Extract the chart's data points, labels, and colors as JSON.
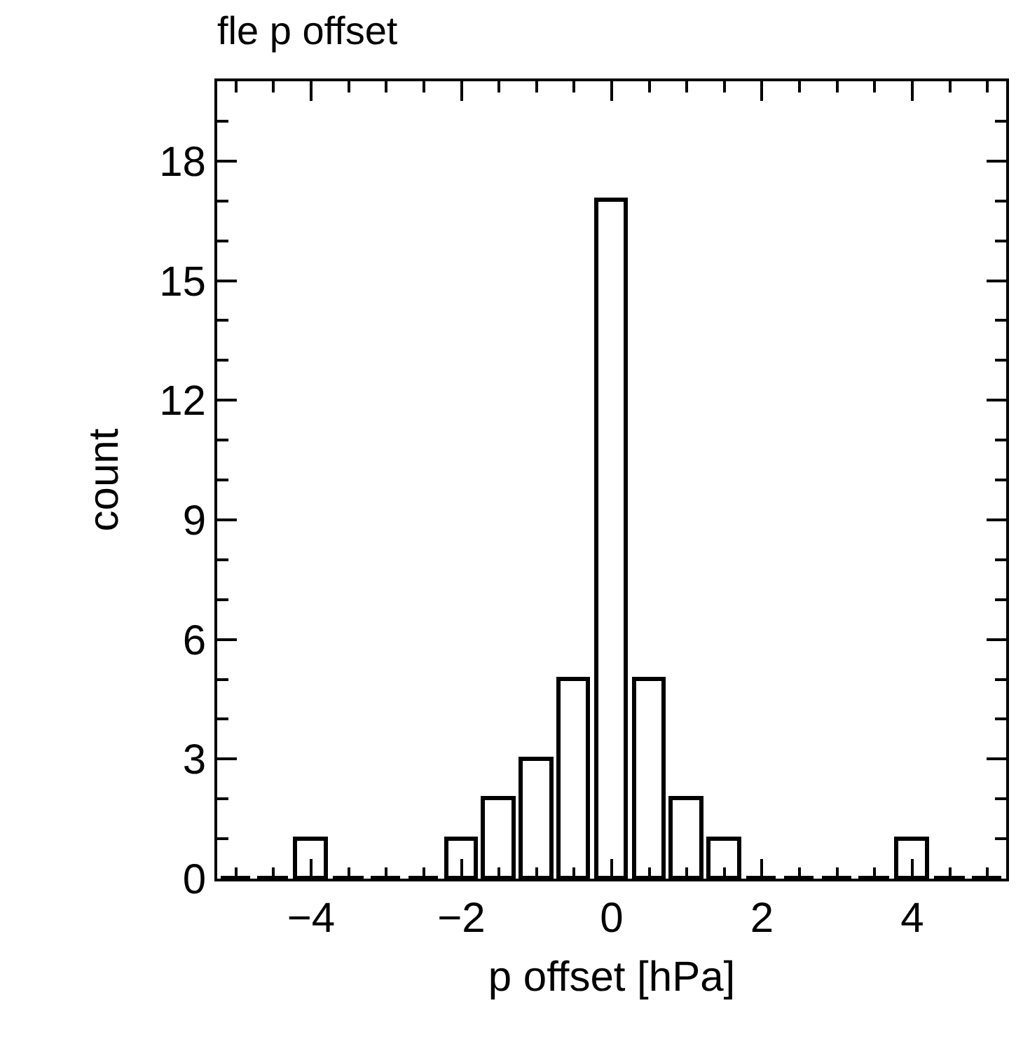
{
  "chart_data": {
    "type": "histogram",
    "title": "fle p offset",
    "xlabel": "p offset [hPa]",
    "ylabel": "count",
    "bins": [
      -5.25,
      -4.75,
      -4.25,
      -3.75,
      -3.25,
      -2.75,
      -2.25,
      -1.75,
      -1.25,
      -0.75,
      -0.25,
      0.25,
      0.75,
      1.25,
      1.75,
      2.25,
      2.75,
      3.25,
      3.75,
      4.25,
      4.75,
      5.25
    ],
    "values": [
      0,
      0,
      1,
      0,
      0,
      0,
      1,
      2,
      3,
      5,
      17,
      5,
      2,
      1,
      0,
      0,
      0,
      0,
      1,
      0,
      0
    ],
    "color": "#000000",
    "xlim": [
      -5.25,
      5.25
    ],
    "xticks": [
      -4,
      -2,
      0,
      2,
      4
    ],
    "ylim": [
      0,
      20
    ],
    "yticks": [
      0,
      3,
      6,
      9,
      12,
      15,
      18
    ]
  }
}
